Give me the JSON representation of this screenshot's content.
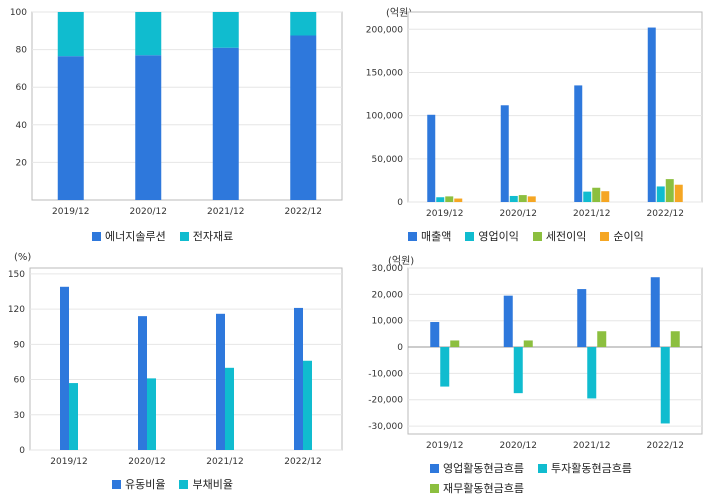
{
  "colors": {
    "blue": "#2e78dc",
    "teal": "#10bccf",
    "green": "#8cbf3f",
    "orange": "#f5a623"
  },
  "charts": [
    {
      "id": "c1",
      "unit": "",
      "legend": [
        {
          "label": "에너지솔루션",
          "color": "#2e78dc"
        },
        {
          "label": "전자재료",
          "color": "#10bccf"
        }
      ]
    },
    {
      "id": "c2",
      "unit": "(억원)",
      "legend": [
        {
          "label": "매출액",
          "color": "#2e78dc"
        },
        {
          "label": "영업이익",
          "color": "#10bccf"
        },
        {
          "label": "세전이익",
          "color": "#8cbf3f"
        },
        {
          "label": "순이익",
          "color": "#f5a623"
        }
      ]
    },
    {
      "id": "c3",
      "unit": "(%)",
      "legend": [
        {
          "label": "유동비율",
          "color": "#2e78dc"
        },
        {
          "label": "부채비율",
          "color": "#10bccf"
        }
      ]
    },
    {
      "id": "c4",
      "unit": "(억원)",
      "legend": [
        {
          "label": "영업활동현금흐름",
          "color": "#2e78dc"
        },
        {
          "label": "투자활동현금흐름",
          "color": "#10bccf"
        },
        {
          "label": "재무활동현금흐름",
          "color": "#8cbf3f"
        }
      ]
    }
  ],
  "chart_data": [
    {
      "type": "bar",
      "stacked": true,
      "categories": [
        "2019/12",
        "2020/12",
        "2021/12",
        "2022/12"
      ],
      "series": [
        {
          "name": "에너지솔루션",
          "values": [
            76.5,
            77,
            81,
            87.5
          ]
        },
        {
          "name": "전자재료",
          "values": [
            23.5,
            23,
            19,
            12.5
          ]
        }
      ],
      "ylim": [
        0,
        100
      ],
      "yticks": [
        20,
        40,
        60,
        80,
        100
      ],
      "ytick_labels": [
        "20",
        "40",
        "60",
        "80",
        "100"
      ],
      "xlabel": "",
      "ylabel": "",
      "grid": true,
      "legend_position": "bottom"
    },
    {
      "type": "bar",
      "categories": [
        "2019/12",
        "2020/12",
        "2021/12",
        "2022/12"
      ],
      "series": [
        {
          "name": "매출액",
          "values": [
            101000,
            112000,
            135000,
            202000
          ]
        },
        {
          "name": "영업이익",
          "values": [
            5500,
            7000,
            12000,
            18000
          ]
        },
        {
          "name": "세전이익",
          "values": [
            6500,
            8000,
            16500,
            26500
          ]
        },
        {
          "name": "순이익",
          "values": [
            4000,
            6500,
            12500,
            20000
          ]
        }
      ],
      "ylim": [
        0,
        220000
      ],
      "yticks": [
        0,
        50000,
        100000,
        150000,
        200000
      ],
      "ytick_labels": [
        "0",
        "50,000",
        "100,000",
        "150,000",
        "200,000"
      ],
      "xlabel": "",
      "ylabel": "",
      "grid": true,
      "legend_position": "bottom"
    },
    {
      "type": "bar",
      "categories": [
        "2019/12",
        "2020/12",
        "2021/12",
        "2022/12"
      ],
      "series": [
        {
          "name": "유동비율",
          "values": [
            139,
            114,
            116,
            121
          ]
        },
        {
          "name": "부채비율",
          "values": [
            57,
            61,
            70,
            76
          ]
        }
      ],
      "ylim": [
        0,
        155
      ],
      "yticks": [
        0,
        30,
        60,
        90,
        120,
        150
      ],
      "ytick_labels": [
        "0",
        "30",
        "60",
        "90",
        "120",
        "150"
      ],
      "xlabel": "",
      "ylabel": "",
      "grid": true,
      "legend_position": "bottom"
    },
    {
      "type": "bar",
      "categories": [
        "2019/12",
        "2020/12",
        "2021/12",
        "2022/12"
      ],
      "series": [
        {
          "name": "영업활동현금흐름",
          "values": [
            9500,
            19500,
            22000,
            26500
          ]
        },
        {
          "name": "투자활동현금흐름",
          "values": [
            -15000,
            -17500,
            -19500,
            -29000
          ]
        },
        {
          "name": "재무활동현금흐름",
          "values": [
            2500,
            2500,
            6000,
            6000
          ]
        }
      ],
      "ylim": [
        -33000,
        30000
      ],
      "yticks": [
        -30000,
        -20000,
        -10000,
        0,
        10000,
        20000,
        30000
      ],
      "ytick_labels": [
        "-30,000",
        "-20,000",
        "-10,000",
        "0",
        "10,000",
        "20,000",
        "30,000"
      ],
      "xlabel": "",
      "ylabel": "",
      "grid": true,
      "legend_position": "bottom"
    }
  ]
}
